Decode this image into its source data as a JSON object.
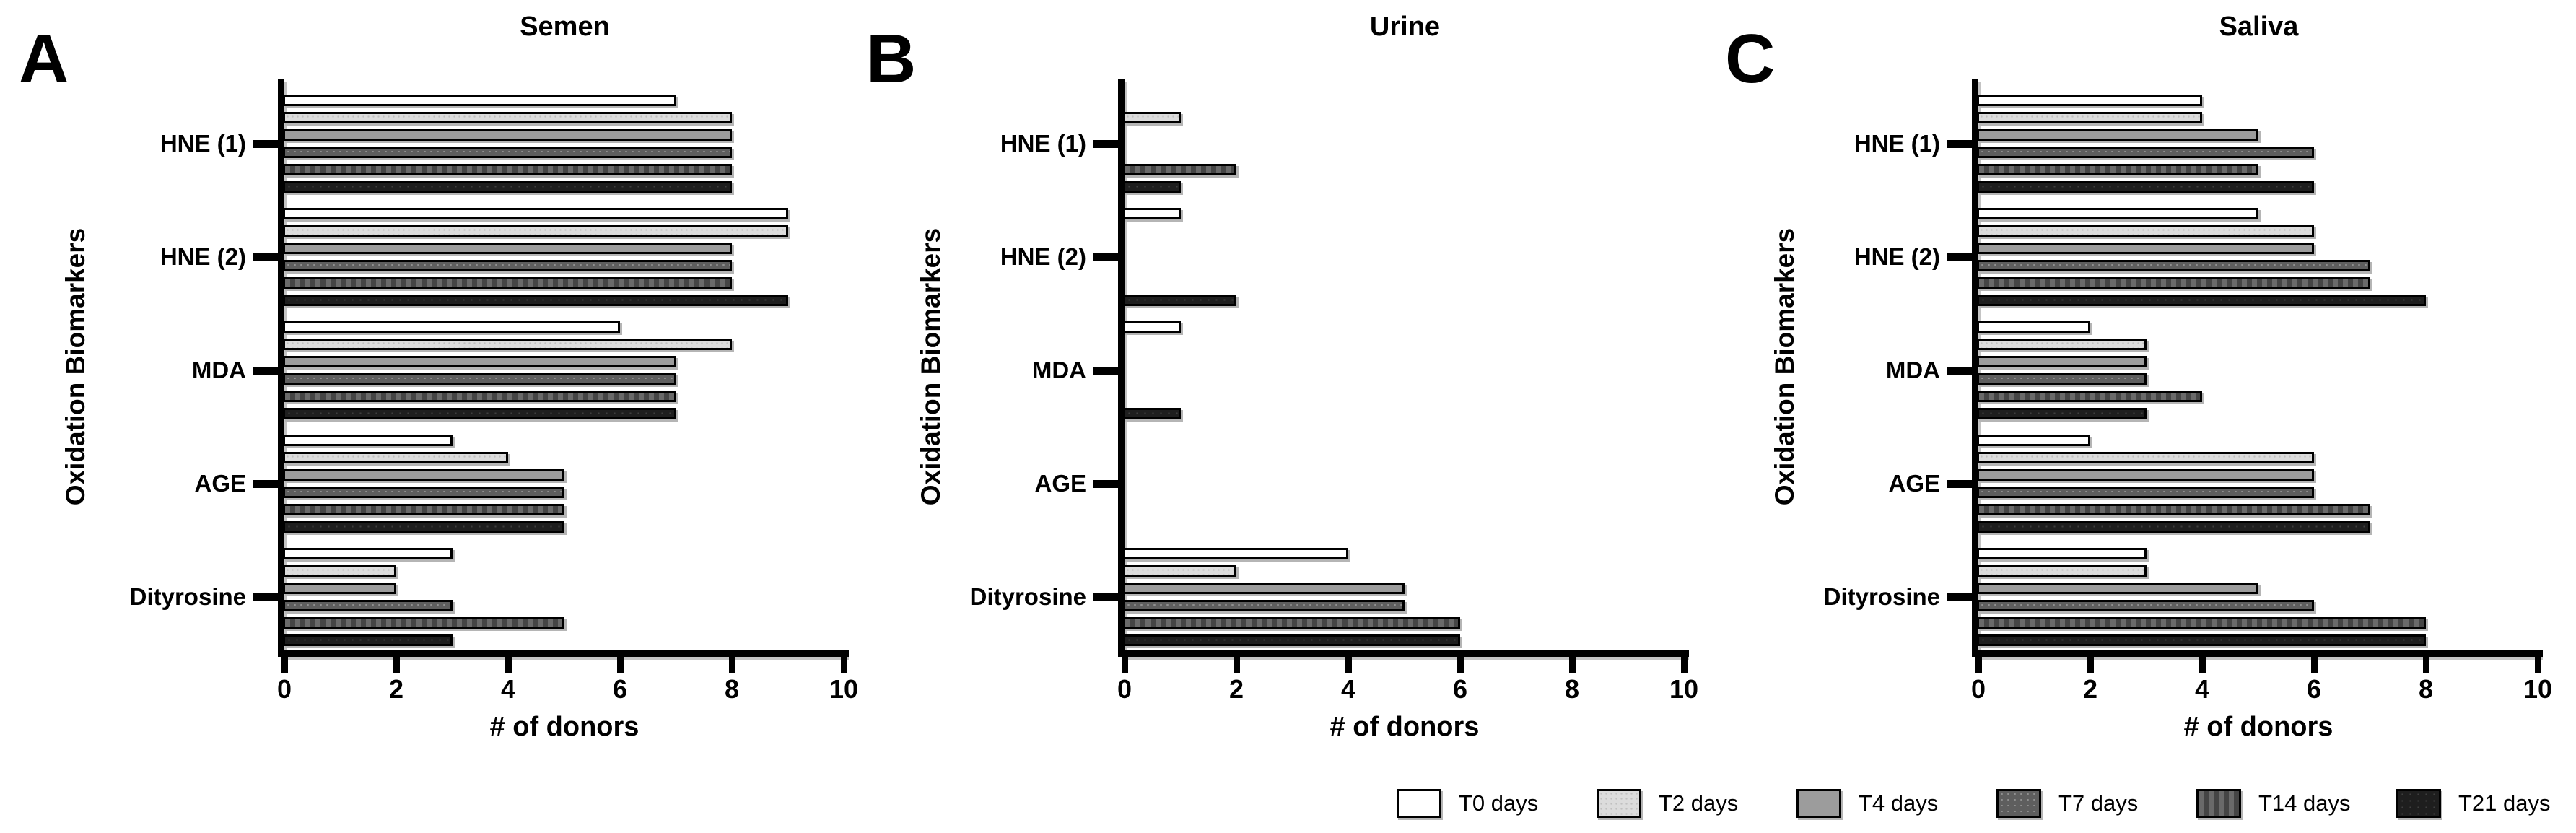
{
  "figure": {
    "xlabel": "# of donors",
    "ylabel": "Oxidation Biomarkers",
    "categories": [
      "HNE (1)",
      "HNE (2)",
      "MDA",
      "AGE",
      "Dityrosine"
    ],
    "xticks": [
      "0",
      "2",
      "4",
      "6",
      "8",
      "10"
    ],
    "panels": [
      {
        "letter": "A",
        "title": "Semen"
      },
      {
        "letter": "B",
        "title": "Urine"
      },
      {
        "letter": "C",
        "title": "Saliva"
      }
    ]
  },
  "legend": {
    "items": [
      {
        "label": "T0 days",
        "color": "#ffffff",
        "pattern": "plain"
      },
      {
        "label": "T2 days",
        "color": "#dcdcdc",
        "pattern": "fine-dots"
      },
      {
        "label": "T4 days",
        "color": "#9c9c9c",
        "pattern": "plain"
      },
      {
        "label": "T7 days",
        "color": "#5e5e5e",
        "pattern": "dots"
      },
      {
        "label": "T14 days",
        "color": "#454545",
        "pattern": "dashes"
      },
      {
        "label": "T21 days",
        "color": "#1e1e1e",
        "pattern": "sparse-dots"
      }
    ]
  },
  "chart_data": [
    {
      "type": "bar",
      "orientation": "horizontal",
      "title": "Semen",
      "xlabel": "# of donors",
      "ylabel": "Oxidation Biomarkers",
      "xlim": [
        0,
        10
      ],
      "xticks": [
        0,
        2,
        4,
        6,
        8,
        10
      ],
      "grid": false,
      "categories": [
        "HNE (1)",
        "HNE (2)",
        "MDA",
        "AGE",
        "Dityrosine"
      ],
      "series": [
        {
          "name": "T0 days",
          "values": [
            7,
            9,
            6,
            3,
            3
          ]
        },
        {
          "name": "T2 days",
          "values": [
            8,
            9,
            8,
            4,
            2
          ]
        },
        {
          "name": "T4 days",
          "values": [
            8,
            8,
            7,
            5,
            2
          ]
        },
        {
          "name": "T7 days",
          "values": [
            8,
            8,
            7,
            5,
            3
          ]
        },
        {
          "name": "T14 days",
          "values": [
            8,
            8,
            7,
            5,
            5
          ]
        },
        {
          "name": "T21 days",
          "values": [
            8,
            9,
            7,
            5,
            3
          ]
        }
      ]
    },
    {
      "type": "bar",
      "orientation": "horizontal",
      "title": "Urine",
      "xlabel": "# of donors",
      "ylabel": "Oxidation Biomarkers",
      "xlim": [
        0,
        10
      ],
      "xticks": [
        0,
        2,
        4,
        6,
        8,
        10
      ],
      "grid": false,
      "categories": [
        "HNE (1)",
        "HNE (2)",
        "MDA",
        "AGE",
        "Dityrosine"
      ],
      "series": [
        {
          "name": "T0 days",
          "values": [
            0,
            1,
            1,
            0,
            4
          ]
        },
        {
          "name": "T2 days",
          "values": [
            1,
            0,
            0,
            0,
            2
          ]
        },
        {
          "name": "T4 days",
          "values": [
            0,
            0,
            0,
            0,
            5
          ]
        },
        {
          "name": "T7 days",
          "values": [
            0,
            0,
            0,
            0,
            5
          ]
        },
        {
          "name": "T14 days",
          "values": [
            2,
            0,
            0,
            0,
            6
          ]
        },
        {
          "name": "T21 days",
          "values": [
            1,
            2,
            1,
            0,
            6
          ]
        }
      ]
    },
    {
      "type": "bar",
      "orientation": "horizontal",
      "title": "Saliva",
      "xlabel": "# of donors",
      "ylabel": "Oxidation Biomarkers",
      "xlim": [
        0,
        10
      ],
      "xticks": [
        0,
        2,
        4,
        6,
        8,
        10
      ],
      "grid": false,
      "categories": [
        "HNE (1)",
        "HNE (2)",
        "MDA",
        "AGE",
        "Dityrosine"
      ],
      "series": [
        {
          "name": "T0 days",
          "values": [
            4,
            5,
            2,
            2,
            3
          ]
        },
        {
          "name": "T2 days",
          "values": [
            4,
            6,
            3,
            6,
            3
          ]
        },
        {
          "name": "T4 days",
          "values": [
            5,
            6,
            3,
            6,
            5
          ]
        },
        {
          "name": "T7 days",
          "values": [
            6,
            7,
            3,
            6,
            6
          ]
        },
        {
          "name": "T14 days",
          "values": [
            5,
            7,
            4,
            7,
            8
          ]
        },
        {
          "name": "T21 days",
          "values": [
            6,
            8,
            3,
            7,
            8
          ]
        }
      ]
    }
  ]
}
